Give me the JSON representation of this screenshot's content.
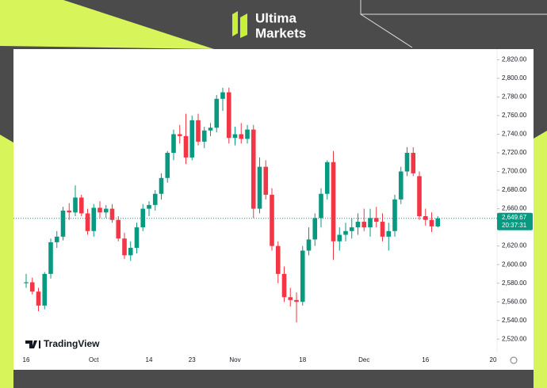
{
  "header": {
    "brand_line1": "Ultima",
    "brand_line2": "Markets"
  },
  "chart_data": {
    "type": "candlestick",
    "watermark": "TradingView",
    "categories": [
      "16",
      null,
      null,
      null,
      null,
      null,
      null,
      null,
      null,
      null,
      null,
      "Oct",
      null,
      null,
      null,
      null,
      null,
      null,
      null,
      null,
      "14",
      null,
      null,
      null,
      null,
      null,
      null,
      "23",
      null,
      null,
      null,
      null,
      null,
      null,
      "Nov",
      null,
      null,
      null,
      null,
      null,
      null,
      null,
      null,
      null,
      null,
      "18",
      null,
      null,
      null,
      null,
      null,
      null,
      null,
      null,
      null,
      "Dec",
      null,
      null,
      null,
      null,
      null,
      null,
      null,
      null,
      null,
      "16",
      null,
      null,
      null,
      null,
      null,
      null,
      null,
      null,
      null,
      null,
      "20"
    ],
    "open": [
      2580,
      2581,
      2571,
      2556,
      2590,
      2624,
      2630,
      2658,
      2656,
      2672,
      2655,
      2636,
      2661,
      2656,
      2660,
      2648,
      2628,
      2610,
      2618,
      2640,
      2660,
      2664,
      2676,
      2693,
      2720,
      2740,
      2738,
      2715,
      2755,
      2732,
      2744,
      2747,
      2778,
      2785,
      2736,
      2740,
      2735,
      2745,
      2660,
      2705,
      2675,
      2620,
      2590,
      2565,
      2562,
      2560,
      2615,
      2627,
      2650,
      2676,
      2710,
      2625,
      2632,
      2636,
      2640,
      2646,
      2640,
      2650,
      2646,
      2630,
      2636,
      2670,
      2700,
      2720,
      2695,
      2652,
      2648,
      2641,
      null,
      null,
      null,
      null,
      null,
      null,
      null,
      null,
      null
    ],
    "high": [
      2590,
      2586,
      2575,
      2592,
      2628,
      2636,
      2662,
      2666,
      2685,
      2675,
      2660,
      2665,
      2668,
      2664,
      2665,
      2652,
      2634,
      2625,
      2645,
      2665,
      2668,
      2680,
      2698,
      2722,
      2745,
      2750,
      2762,
      2760,
      2762,
      2748,
      2752,
      2782,
      2790,
      2790,
      2748,
      2752,
      2750,
      2750,
      2715,
      2712,
      2682,
      2625,
      2598,
      2575,
      2570,
      2620,
      2640,
      2655,
      2682,
      2712,
      2722,
      2640,
      2645,
      2650,
      2655,
      2660,
      2660,
      2662,
      2655,
      2645,
      2675,
      2705,
      2726,
      2726,
      2700,
      2660,
      2656,
      2652,
      null,
      null,
      null,
      null,
      null,
      null,
      null,
      null,
      null
    ],
    "low": [
      2575,
      2568,
      2550,
      2552,
      2585,
      2618,
      2626,
      2648,
      2652,
      2652,
      2632,
      2630,
      2650,
      2650,
      2645,
      2625,
      2606,
      2604,
      2612,
      2636,
      2652,
      2658,
      2670,
      2688,
      2712,
      2730,
      2708,
      2712,
      2728,
      2725,
      2738,
      2742,
      2765,
      2730,
      2728,
      2730,
      2730,
      2650,
      2655,
      2670,
      2615,
      2580,
      2560,
      2555,
      2538,
      2556,
      2610,
      2620,
      2640,
      2670,
      2605,
      2615,
      2625,
      2628,
      2632,
      2636,
      2630,
      2640,
      2625,
      2615,
      2630,
      2665,
      2695,
      2695,
      2648,
      2642,
      2635,
      2640,
      null,
      null,
      null,
      null,
      null,
      null,
      null,
      null,
      null
    ],
    "close": [
      2581,
      2571,
      2556,
      2590,
      2624,
      2630,
      2658,
      2656,
      2672,
      2655,
      2636,
      2661,
      2656,
      2660,
      2648,
      2628,
      2610,
      2618,
      2640,
      2660,
      2664,
      2676,
      2693,
      2720,
      2740,
      2738,
      2715,
      2755,
      2732,
      2744,
      2747,
      2778,
      2785,
      2736,
      2740,
      2735,
      2745,
      2660,
      2705,
      2675,
      2620,
      2590,
      2565,
      2562,
      2560,
      2615,
      2627,
      2650,
      2676,
      2710,
      2625,
      2632,
      2636,
      2640,
      2646,
      2640,
      2650,
      2646,
      2630,
      2636,
      2670,
      2700,
      2720,
      2698,
      2652,
      2648,
      2641,
      2649.67,
      null,
      null,
      null,
      null,
      null,
      null,
      null,
      null,
      null
    ],
    "up_color": "#089981",
    "down_color": "#f23645",
    "ylim": [
      2510,
      2828
    ],
    "yticks": [
      {
        "value": 2520,
        "label": "2,520.00"
      },
      {
        "value": 2540,
        "label": "2,540.00"
      },
      {
        "value": 2560,
        "label": "2,560.00"
      },
      {
        "value": 2580,
        "label": "2,580.00"
      },
      {
        "value": 2600,
        "label": "2,600.00"
      },
      {
        "value": 2620,
        "label": "2,620.00"
      },
      {
        "value": 2640,
        "label": "2,640.00"
      },
      {
        "value": 2660,
        "label": "2,660.00"
      },
      {
        "value": 2680,
        "label": "2,680.00"
      },
      {
        "value": 2700,
        "label": "2,700.00"
      },
      {
        "value": 2720,
        "label": "2,720.00"
      },
      {
        "value": 2740,
        "label": "2,740.00"
      },
      {
        "value": 2760,
        "label": "2,760.00"
      },
      {
        "value": 2780,
        "label": "2,780.00"
      },
      {
        "value": 2800,
        "label": "2,800.00"
      },
      {
        "value": 2820,
        "label": "2,820.00"
      }
    ],
    "last_price": {
      "value": 2649.67,
      "label": "2,649.67"
    },
    "countdown": "20:37:31",
    "grid": false
  }
}
